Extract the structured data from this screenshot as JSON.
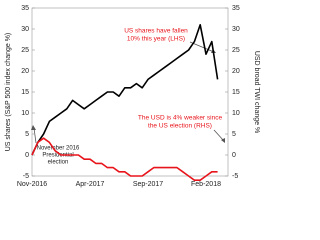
{
  "chart_data": {
    "type": "line",
    "y_label": "US shares (S&P 500 index change %)",
    "y2_label": "USD broad TWI change %",
    "categories": [
      "Nov-2016",
      null,
      null,
      null,
      null,
      null,
      null,
      null,
      null,
      null,
      "Apr-2017",
      null,
      null,
      null,
      null,
      null,
      null,
      null,
      null,
      null,
      "Sep-2017",
      null,
      null,
      null,
      null,
      null,
      null,
      null,
      null,
      null,
      "Feb-2018",
      null,
      null
    ],
    "series": [
      {
        "name": "US shares (S&P 500 index change %)",
        "color": "#000000",
        "axis": "y",
        "values": [
          0,
          3,
          5,
          8,
          9,
          10,
          11,
          13,
          12,
          11,
          12,
          13,
          14,
          15,
          15,
          14,
          16,
          16,
          17,
          16,
          18,
          19,
          20,
          21,
          22,
          23,
          24,
          25,
          27,
          31,
          24,
          27,
          18
        ]
      },
      {
        "name": "USD broad TWI change %",
        "color": "#e8141b",
        "axis": "y2",
        "values": [
          0,
          3,
          4,
          3,
          1,
          0,
          0,
          0,
          0,
          -1,
          -1,
          -2,
          -2,
          -3,
          -3,
          -4,
          -4,
          -5,
          -5,
          -5,
          -4,
          -3,
          -3,
          -3,
          -3,
          -3,
          -4,
          -5,
          -6,
          -6,
          -5,
          -4,
          -4
        ]
      }
    ],
    "ylim": [
      -5,
      35
    ],
    "yticks": [
      -5,
      0,
      5,
      10,
      15,
      20,
      25,
      30,
      35
    ],
    "y2lim": [
      -5,
      35
    ],
    "y2ticks": [
      -5,
      0,
      5,
      10,
      15,
      20,
      25,
      30,
      35
    ],
    "grid": false,
    "annotations": [
      {
        "lines": [
          "US shares have fallen",
          "10% this year (LHS)"
        ]
      },
      {
        "lines": [
          "The USD is 4% weaker since",
          "the US election (RHS)"
        ]
      },
      {
        "lines": [
          "November  2016",
          "Presidential",
          "election"
        ]
      }
    ]
  }
}
